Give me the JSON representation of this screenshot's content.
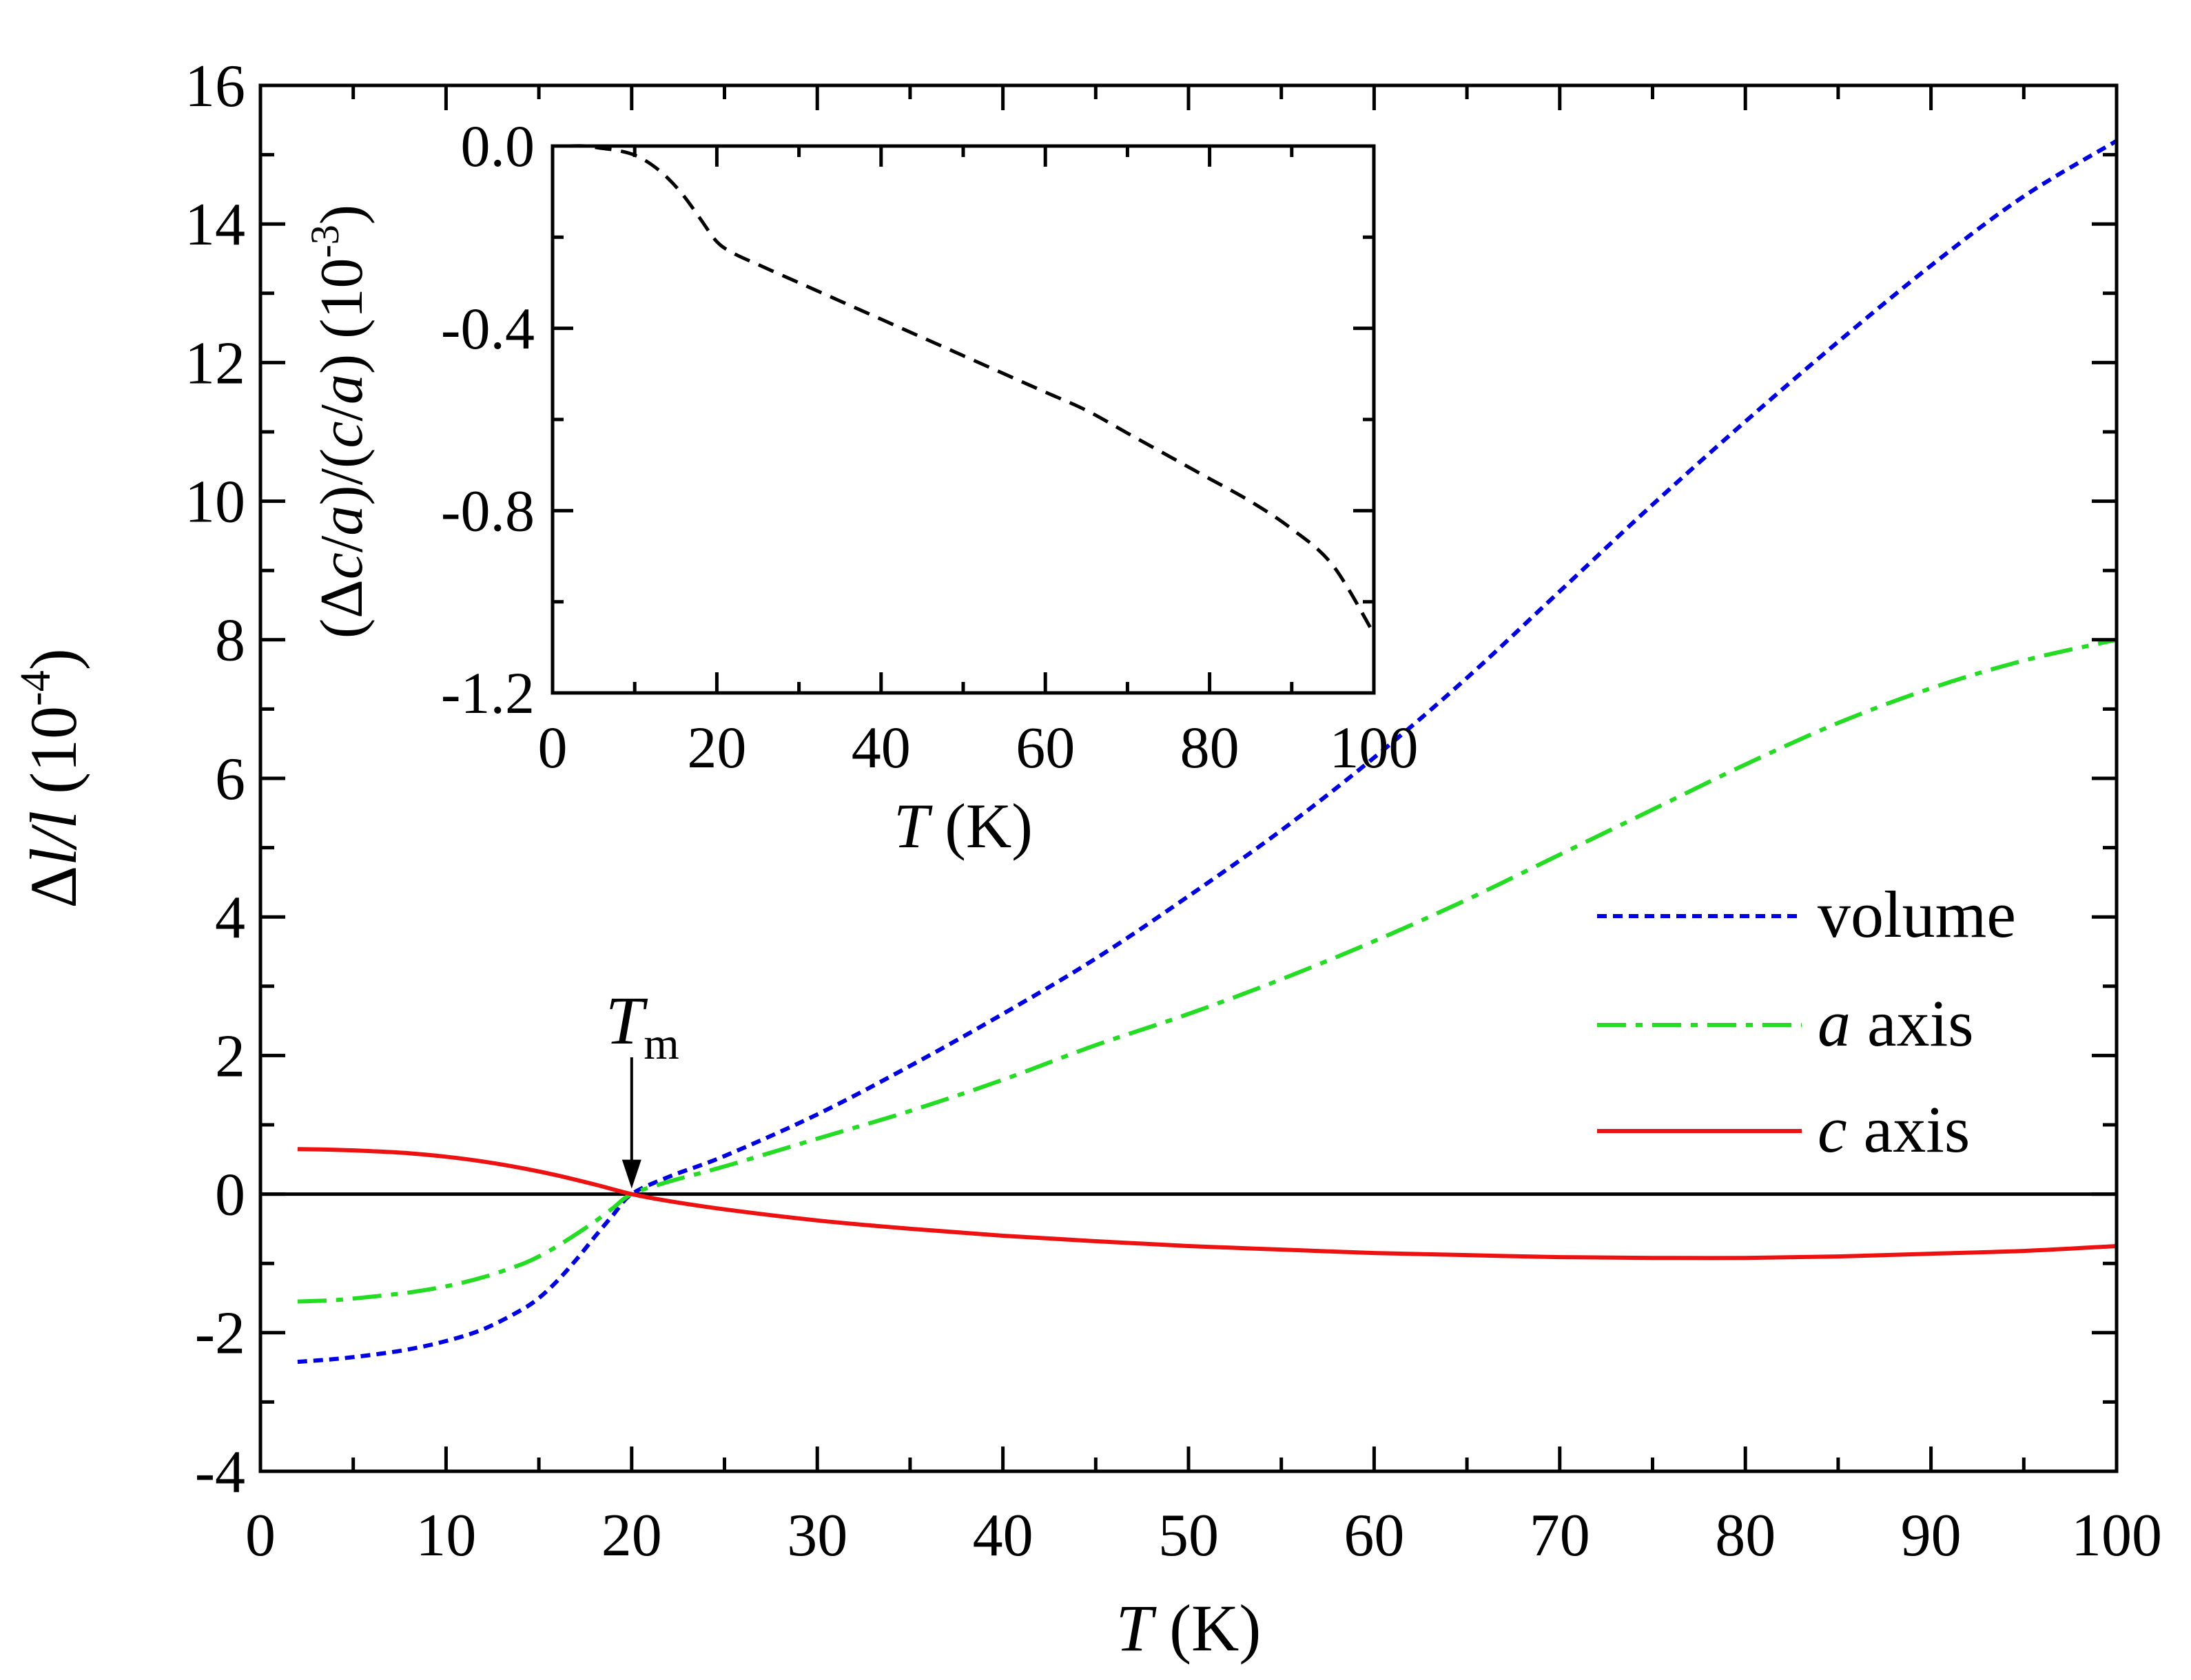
{
  "chart_data": [
    {
      "id": "main",
      "type": "line",
      "title": "",
      "xlabel": {
        "symbol": "T",
        "unit": " (K)"
      },
      "ylabel": {
        "symbol": "Δl/l",
        "base": " (10",
        "exp": "-4",
        "close": ")"
      },
      "xlim": [
        0,
        100
      ],
      "ylim": [
        -4,
        16
      ],
      "xticks": [
        0,
        10,
        20,
        30,
        40,
        50,
        60,
        70,
        80,
        90,
        100
      ],
      "yticks": [
        -4,
        -2,
        0,
        2,
        4,
        6,
        8,
        10,
        12,
        14,
        16
      ],
      "zero_line": 0,
      "legend_position": "right",
      "series": [
        {
          "name": "volume",
          "label_parts": [
            "",
            "volume"
          ],
          "color": "#0000e6",
          "style": "dotted",
          "x": [
            2,
            4,
            6,
            8,
            10,
            12,
            14,
            15,
            16,
            17,
            18,
            19,
            20,
            22,
            25,
            30,
            35,
            40,
            45,
            50,
            55,
            60,
            65,
            70,
            75,
            80,
            85,
            90,
            95,
            100
          ],
          "y": [
            -2.42,
            -2.38,
            -2.32,
            -2.24,
            -2.12,
            -1.95,
            -1.68,
            -1.5,
            -1.25,
            -0.95,
            -0.62,
            -0.3,
            0.0,
            0.25,
            0.55,
            1.15,
            1.85,
            2.6,
            3.4,
            4.3,
            5.25,
            6.3,
            7.45,
            8.7,
            9.95,
            11.15,
            12.3,
            13.4,
            14.4,
            15.2
          ]
        },
        {
          "name": "a axis",
          "label_parts": [
            "a",
            " axis"
          ],
          "color": "#22dd22",
          "style": "dashdot",
          "x": [
            2,
            4,
            6,
            8,
            10,
            12,
            14,
            15,
            16,
            17,
            18,
            19,
            20,
            22,
            25,
            30,
            35,
            40,
            45,
            50,
            55,
            60,
            65,
            70,
            75,
            80,
            85,
            90,
            95,
            100
          ],
          "y": [
            -1.55,
            -1.53,
            -1.48,
            -1.42,
            -1.33,
            -1.2,
            -1.02,
            -0.9,
            -0.75,
            -0.58,
            -0.4,
            -0.2,
            0.0,
            0.18,
            0.4,
            0.8,
            1.2,
            1.65,
            2.15,
            2.6,
            3.1,
            3.65,
            4.25,
            4.9,
            5.55,
            6.2,
            6.8,
            7.3,
            7.7,
            8.0
          ]
        },
        {
          "name": "c axis",
          "label_parts": [
            "c",
            " axis"
          ],
          "color": "#ee1111",
          "style": "solid",
          "x": [
            2,
            4,
            6,
            8,
            10,
            12,
            14,
            16,
            18,
            20,
            22,
            25,
            30,
            35,
            40,
            45,
            50,
            55,
            60,
            65,
            70,
            75,
            80,
            85,
            90,
            95,
            100
          ],
          "y": [
            0.65,
            0.64,
            0.62,
            0.59,
            0.54,
            0.47,
            0.38,
            0.27,
            0.14,
            0.0,
            -0.1,
            -0.22,
            -0.38,
            -0.5,
            -0.6,
            -0.68,
            -0.75,
            -0.8,
            -0.85,
            -0.88,
            -0.91,
            -0.92,
            -0.92,
            -0.9,
            -0.86,
            -0.82,
            -0.75
          ]
        }
      ],
      "annotations": [
        {
          "text": "T",
          "subscript": "m",
          "x": 20,
          "y": 0,
          "arrow": true
        }
      ]
    },
    {
      "id": "inset",
      "type": "line",
      "title": "",
      "xlabel": {
        "symbol": "T",
        "unit": " (K)"
      },
      "ylabel": {
        "parts": [
          "(Δ",
          "c",
          "/",
          "a",
          ")/(",
          "c",
          "/",
          "a",
          ") (10"
        ],
        "exp": "-3",
        "close": ")"
      },
      "xlim": [
        0,
        100
      ],
      "ylim": [
        -1.2,
        0.0
      ],
      "xticks": [
        0,
        20,
        40,
        60,
        80,
        100
      ],
      "yticks": [
        0.0,
        -0.4,
        -0.8,
        -1.2
      ],
      "ytick_labels": [
        "0.0",
        "-0.4",
        "-0.8",
        "-1.2"
      ],
      "series": [
        {
          "name": "c/a",
          "color": "#000000",
          "style": "dashed",
          "x": [
            2,
            4,
            6,
            8,
            10,
            12,
            14,
            16,
            18,
            20,
            22,
            25,
            30,
            35,
            40,
            45,
            50,
            55,
            60,
            65,
            70,
            75,
            80,
            85,
            90,
            95,
            100
          ],
          "y": [
            0.0,
            0.0,
            -0.005,
            -0.01,
            -0.02,
            -0.04,
            -0.07,
            -0.11,
            -0.16,
            -0.21,
            -0.235,
            -0.26,
            -0.3,
            -0.34,
            -0.38,
            -0.42,
            -0.46,
            -0.5,
            -0.54,
            -0.58,
            -0.63,
            -0.68,
            -0.73,
            -0.78,
            -0.84,
            -0.92,
            -1.07
          ]
        }
      ]
    }
  ]
}
